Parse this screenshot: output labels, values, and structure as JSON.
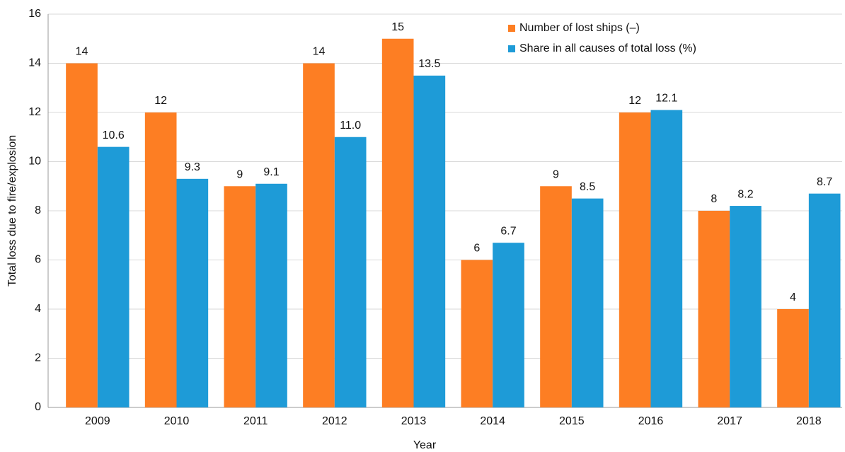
{
  "chart_data": {
    "type": "bar",
    "xlabel": "Year",
    "ylabel": "Total loss due to fire/explosion",
    "categories": [
      "2009",
      "2010",
      "2011",
      "2012",
      "2013",
      "2014",
      "2015",
      "2016",
      "2017",
      "2018"
    ],
    "series": [
      {
        "name": "Number of lost ships (–)",
        "color": "#fd7e23",
        "values": [
          14,
          12,
          9,
          14,
          15,
          6,
          9,
          12,
          8,
          4
        ]
      },
      {
        "name": "Share in all causes of total loss (%)",
        "color": "#1e9bd7",
        "values": [
          10.6,
          9.3,
          9.1,
          11.0,
          13.5,
          6.7,
          8.5,
          12.1,
          8.2,
          8.7
        ],
        "value_labels": [
          "10.6",
          "9.3",
          "9.1",
          "11.0",
          "13.5",
          "6.7",
          "8.5",
          "12.1",
          "8.2",
          "8.7"
        ]
      }
    ],
    "ylim": [
      0,
      16
    ],
    "yticks": [
      0,
      2,
      4,
      6,
      8,
      10,
      12,
      14,
      16
    ],
    "grid": true,
    "legend": "upper right"
  }
}
